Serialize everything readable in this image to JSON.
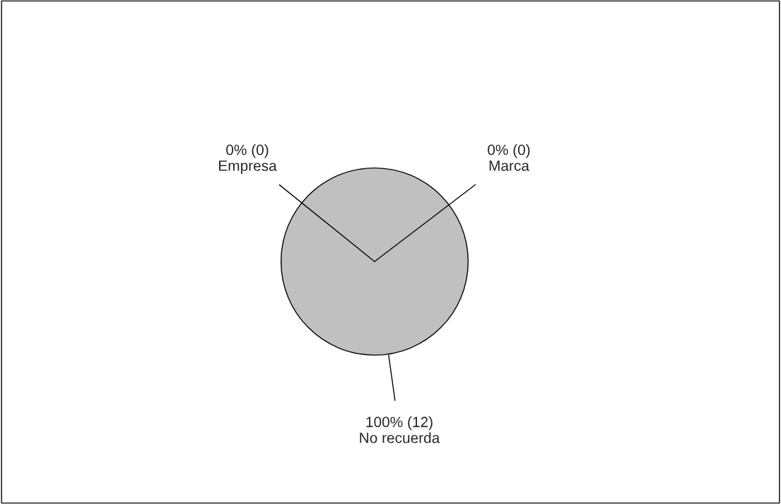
{
  "chart_data": {
    "type": "pie",
    "categories": [
      "Empresa",
      "Marca",
      "No recuerda"
    ],
    "values": [
      0,
      0,
      12
    ],
    "value_labels": [
      "0% (0)",
      "0% (0)",
      "100% (12)"
    ],
    "colors": [
      "#9999ff",
      "#993366",
      "#c0c0c0"
    ]
  }
}
